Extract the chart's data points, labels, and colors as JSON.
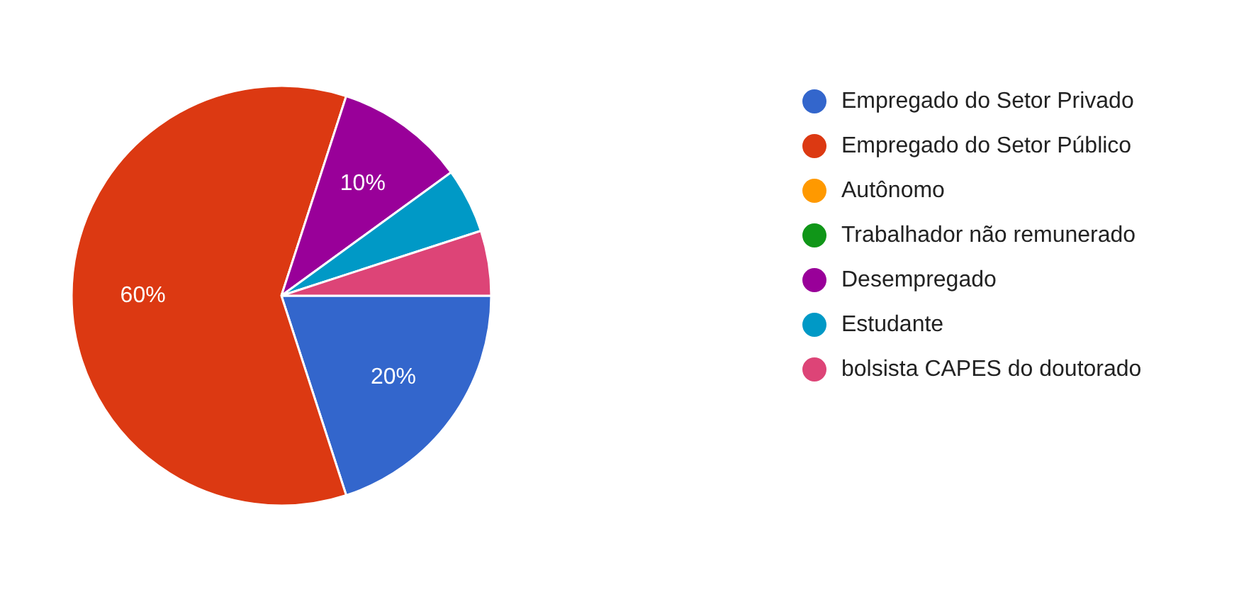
{
  "chart_data": {
    "type": "pie",
    "categories": [
      "Empregado do Setor Privado",
      "Empregado do Setor Público",
      "Autônomo",
      "Trabalhador não remunerado",
      "Desempregado",
      "Estudante",
      "bolsista CAPES do doutorado"
    ],
    "values": [
      20,
      60,
      0,
      0,
      10,
      5,
      5
    ],
    "colors": [
      "#3366cc",
      "#dc3912",
      "#ff9900",
      "#109618",
      "#990099",
      "#0099c6",
      "#dd4477"
    ],
    "value_labels": [
      "20%",
      "60%",
      null,
      null,
      "10%",
      null,
      null
    ],
    "legend": "right"
  }
}
